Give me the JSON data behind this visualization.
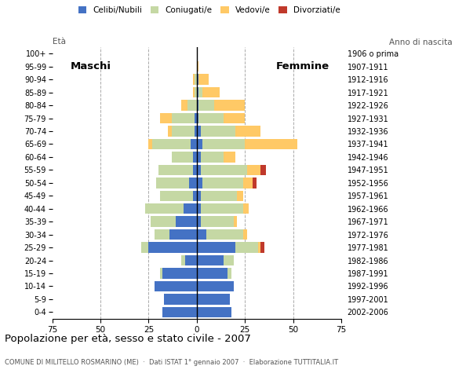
{
  "age_groups": [
    "0-4",
    "5-9",
    "10-14",
    "15-19",
    "20-24",
    "25-29",
    "30-34",
    "35-39",
    "40-44",
    "45-49",
    "50-54",
    "55-59",
    "60-64",
    "65-69",
    "70-74",
    "75-79",
    "80-84",
    "85-89",
    "90-94",
    "95-99",
    "100+"
  ],
  "birth_years": [
    "2002-2006",
    "1997-2001",
    "1992-1996",
    "1987-1991",
    "1982-1986",
    "1977-1981",
    "1972-1976",
    "1967-1971",
    "1962-1966",
    "1957-1961",
    "1952-1956",
    "1947-1951",
    "1942-1946",
    "1937-1941",
    "1932-1936",
    "1927-1931",
    "1922-1926",
    "1917-1921",
    "1912-1916",
    "1907-1911",
    "1906 o prima"
  ],
  "males": {
    "celibe": [
      18,
      17,
      22,
      18,
      6,
      25,
      14,
      11,
      7,
      2,
      4,
      2,
      2,
      3,
      1,
      1,
      0,
      0,
      0,
      0,
      0
    ],
    "coniugato": [
      0,
      0,
      0,
      1,
      2,
      4,
      8,
      13,
      20,
      17,
      17,
      18,
      11,
      20,
      12,
      12,
      5,
      1,
      1,
      0,
      0
    ],
    "vedovo": [
      0,
      0,
      0,
      0,
      0,
      0,
      0,
      0,
      0,
      0,
      0,
      0,
      0,
      2,
      2,
      6,
      3,
      1,
      1,
      0,
      0
    ],
    "divorziato": [
      0,
      0,
      0,
      0,
      0,
      0,
      0,
      0,
      0,
      0,
      0,
      0,
      0,
      0,
      0,
      0,
      0,
      0,
      0,
      0,
      0
    ]
  },
  "females": {
    "nubile": [
      18,
      17,
      19,
      16,
      14,
      20,
      5,
      2,
      2,
      2,
      3,
      2,
      2,
      3,
      2,
      1,
      1,
      1,
      1,
      0,
      0
    ],
    "coniugata": [
      0,
      0,
      0,
      2,
      5,
      12,
      19,
      17,
      22,
      19,
      21,
      24,
      12,
      22,
      18,
      13,
      8,
      2,
      0,
      0,
      0
    ],
    "vedova": [
      0,
      0,
      0,
      0,
      0,
      1,
      2,
      2,
      3,
      3,
      5,
      7,
      6,
      27,
      13,
      11,
      16,
      9,
      5,
      1,
      0
    ],
    "divorziata": [
      0,
      0,
      0,
      0,
      0,
      2,
      0,
      0,
      0,
      0,
      2,
      3,
      0,
      0,
      0,
      0,
      0,
      0,
      0,
      0,
      0
    ]
  },
  "colors": {
    "celibe_nubile": "#4472c4",
    "coniugato_coniugata": "#c5d8a4",
    "vedovo_vedova": "#ffc966",
    "divorziato_divorziata": "#c0392b"
  },
  "title": "Popolazione per età, sesso e stato civile - 2007",
  "subtitle": "COMUNE DI MILITELLO ROSMARINO (ME)  ·  Dati ISTAT 1° gennaio 2007  ·  Elaborazione TUTTITALIA.IT",
  "xlabel_left": "Maschi",
  "xlabel_right": "Femmine",
  "ylabel_left": "Età",
  "ylabel_right": "Anno di nascita",
  "xlim": 75,
  "background_color": "#ffffff",
  "grid_color": "#aaaaaa"
}
